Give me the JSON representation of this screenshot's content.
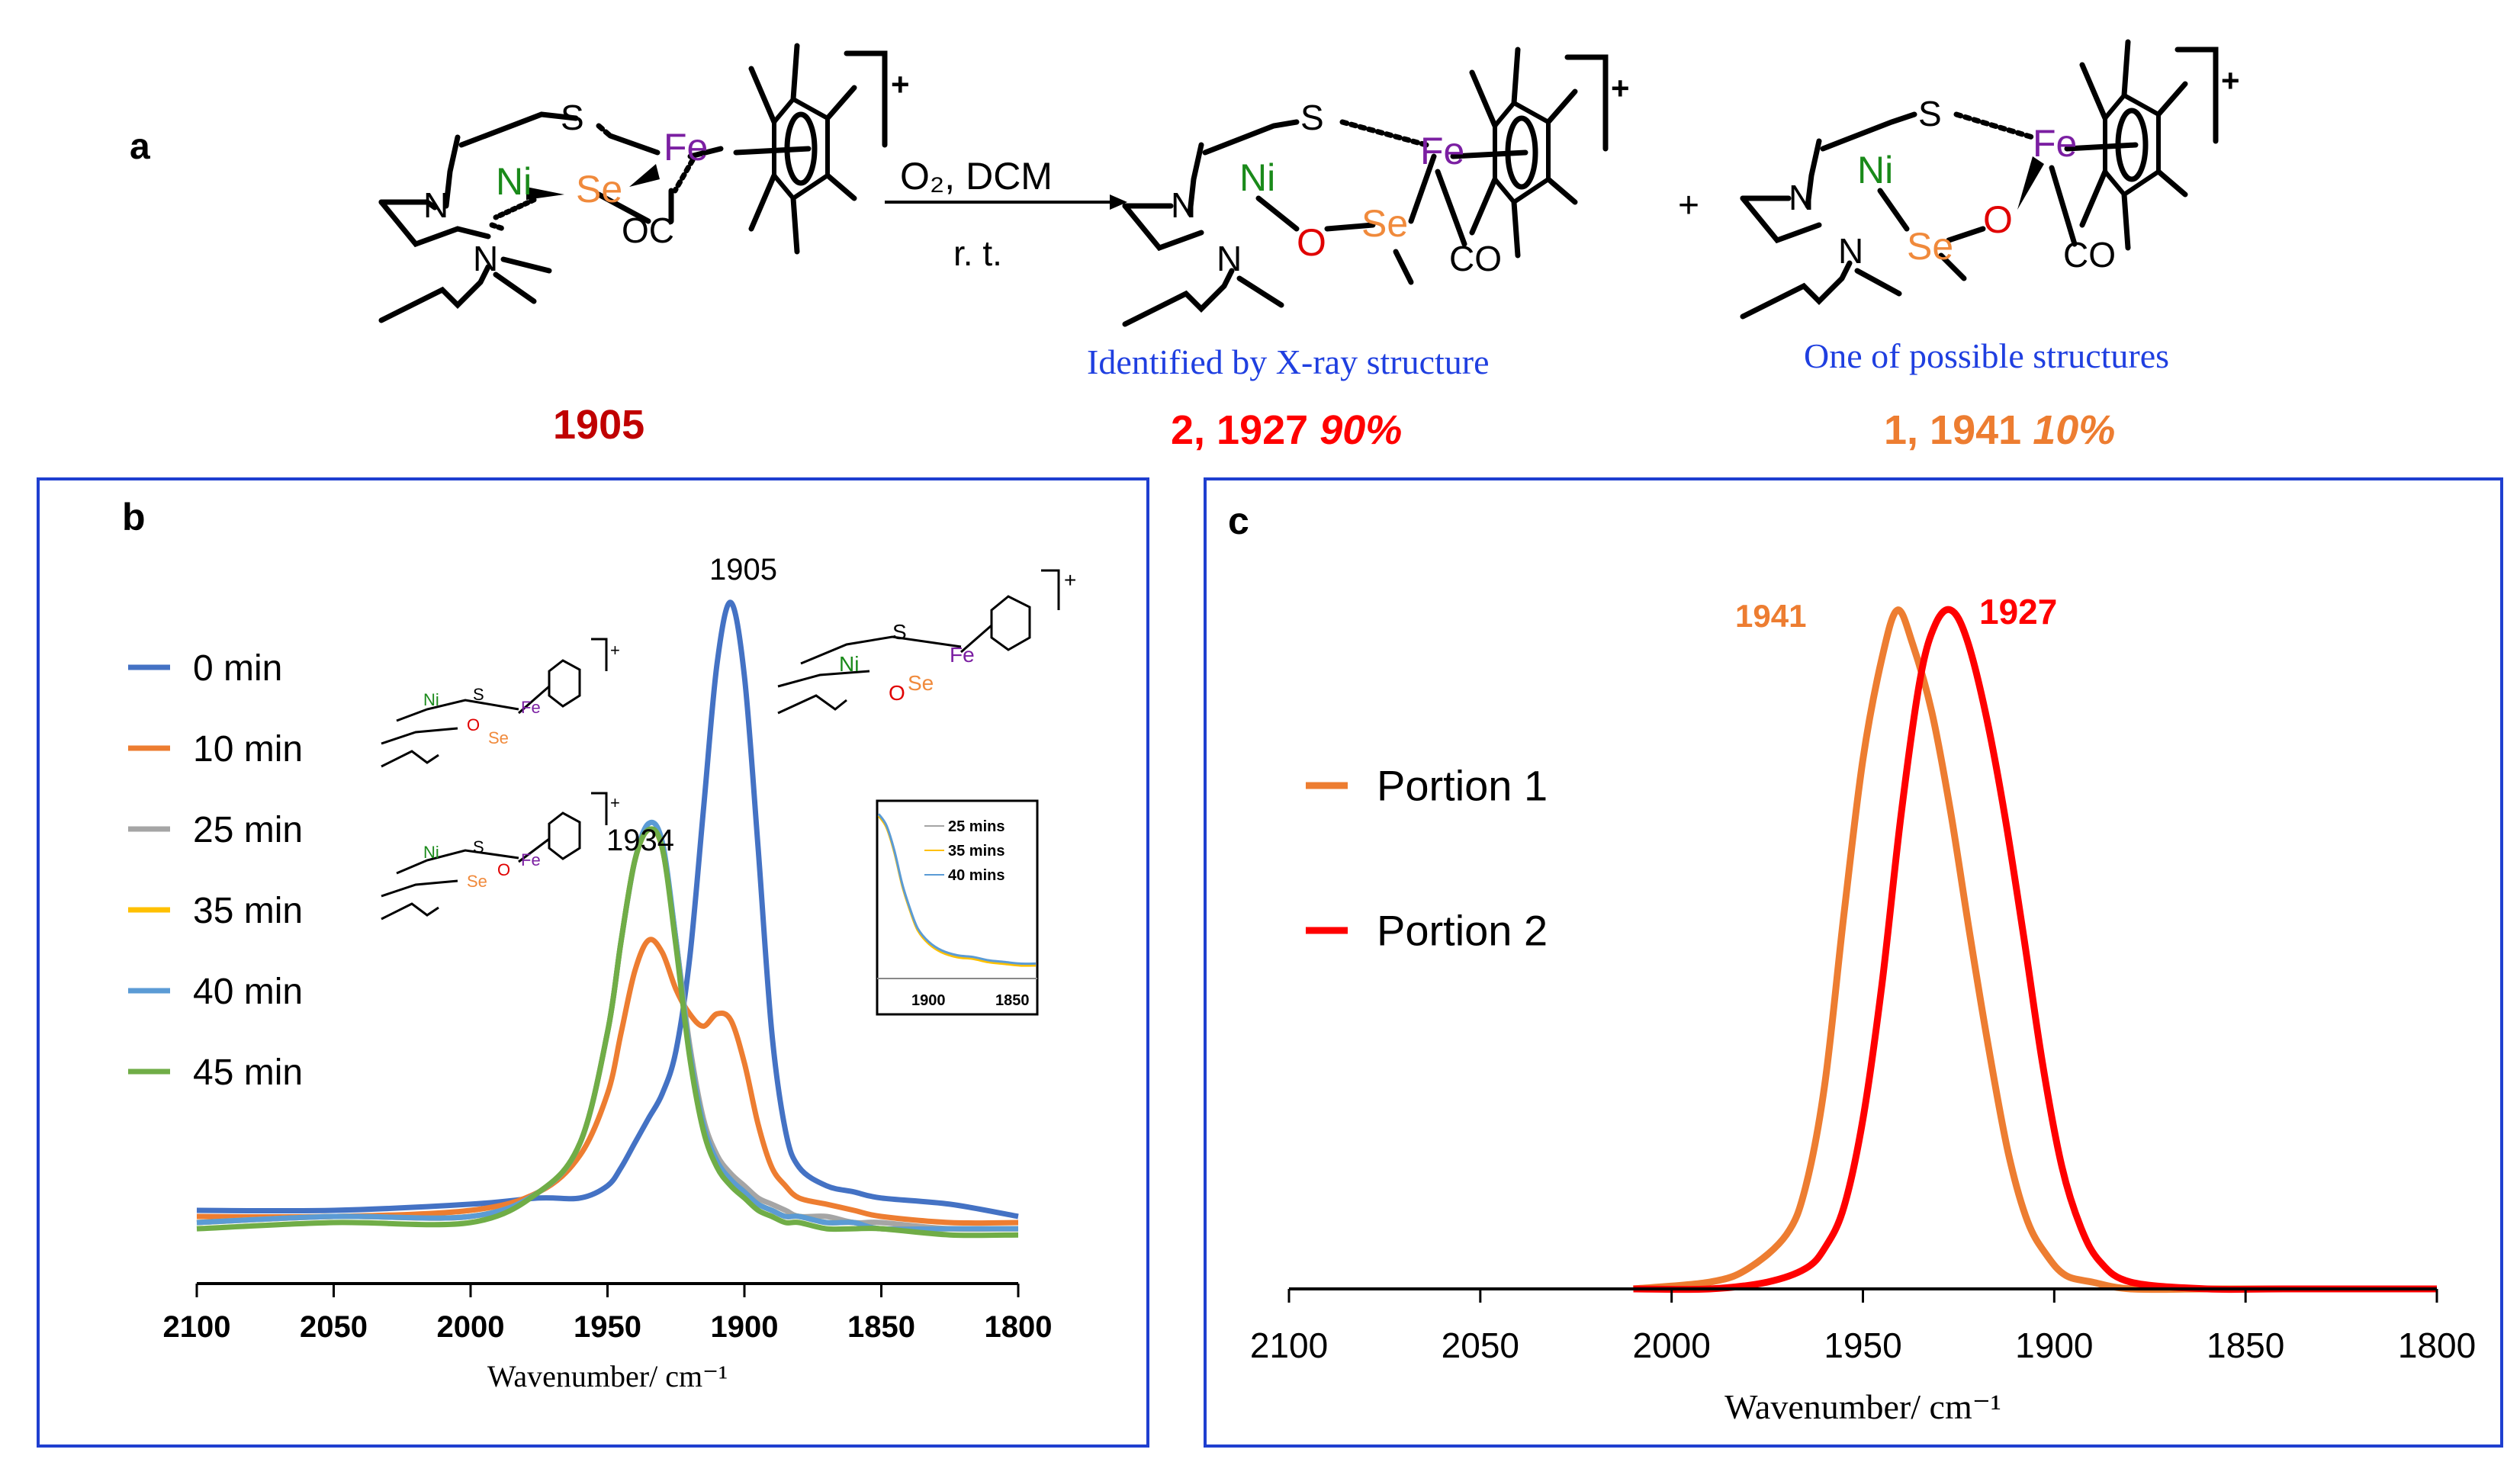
{
  "panel_a": {
    "label": "a",
    "arrow_top": "O₂, DCM",
    "arrow_bottom": "r. t.",
    "plus": "+",
    "reactant_label": "1905",
    "product1_caption": "Identified by X-ray structure",
    "product1_label": "2, 1927",
    "product1_pct": "90%",
    "product2_caption": "One of possible structures",
    "product2_label": "1, 1941",
    "product2_pct": "10%",
    "atoms": {
      "S": "S",
      "Se": "Se",
      "Ni": "Ni",
      "Fe": "Fe",
      "N": "N",
      "O": "O",
      "OC": "OC",
      "CO": "CO",
      "charge": "+"
    }
  },
  "panel_b": {
    "label": "b",
    "peak_labels": [
      "1905",
      "1934"
    ],
    "inset_legend": [
      "25 mins",
      "35 mins",
      "40 mins"
    ],
    "inset_ticks": [
      "1900",
      "1850"
    ]
  },
  "panel_c": {
    "label": "c",
    "peak_labels": [
      "1941",
      "1927"
    ]
  },
  "colors": {
    "orange": "#ED7D31",
    "red": "#FF0000",
    "darkred": "#C00000",
    "blue_text": "#1F3FE0",
    "frame": "#1F3FD0",
    "ni": "#1A8A1A",
    "fe": "#7B1FA2",
    "se": "#F08A3C",
    "o": "#E00000"
  },
  "chart_data": [
    {
      "type": "line",
      "title": "",
      "xlabel": "Wavenumber/ cm⁻¹",
      "ylabel": "",
      "xlim": [
        2100,
        1800
      ],
      "xticks": [
        "2100",
        "2050",
        "2000",
        "1950",
        "1900",
        "1850",
        "1800"
      ],
      "ylim": [
        0,
        1
      ],
      "grid": false,
      "legend_position": "left",
      "series": [
        {
          "name": "0 min",
          "color": "#4472C4",
          "x": [
            2100,
            2050,
            2000,
            1975,
            1960,
            1950,
            1945,
            1940,
            1935,
            1930,
            1925,
            1920,
            1915,
            1910,
            1905,
            1900,
            1895,
            1890,
            1885,
            1880,
            1870,
            1860,
            1850,
            1825,
            1800
          ],
          "y": [
            0.01,
            0.01,
            0.02,
            0.03,
            0.03,
            0.05,
            0.08,
            0.12,
            0.16,
            0.2,
            0.27,
            0.42,
            0.66,
            0.9,
            1.0,
            0.88,
            0.6,
            0.3,
            0.14,
            0.08,
            0.05,
            0.04,
            0.03,
            0.02,
            0.0
          ]
        },
        {
          "name": "10 min",
          "color": "#ED7D31",
          "x": [
            2100,
            2050,
            2000,
            1975,
            1960,
            1950,
            1945,
            1940,
            1935,
            1930,
            1925,
            1920,
            1915,
            1910,
            1905,
            1900,
            1895,
            1890,
            1885,
            1880,
            1870,
            1860,
            1850,
            1825,
            1800
          ],
          "y": [
            0.0,
            0.0,
            0.01,
            0.04,
            0.1,
            0.2,
            0.3,
            0.4,
            0.45,
            0.43,
            0.37,
            0.33,
            0.31,
            0.33,
            0.32,
            0.25,
            0.15,
            0.08,
            0.05,
            0.03,
            0.02,
            0.01,
            0.0,
            -0.01,
            -0.01
          ]
        },
        {
          "name": "25 min",
          "color": "#A5A5A5",
          "x": [
            2100,
            2050,
            2000,
            1975,
            1960,
            1950,
            1945,
            1940,
            1935,
            1930,
            1925,
            1920,
            1915,
            1910,
            1905,
            1900,
            1895,
            1890,
            1885,
            1880,
            1870,
            1860,
            1850,
            1825,
            1800
          ],
          "y": [
            -0.01,
            0.0,
            0.0,
            0.04,
            0.12,
            0.3,
            0.45,
            0.58,
            0.63,
            0.6,
            0.45,
            0.28,
            0.16,
            0.1,
            0.07,
            0.05,
            0.03,
            0.02,
            0.01,
            0.0,
            0.0,
            -0.01,
            -0.01,
            -0.02,
            -0.02
          ]
        },
        {
          "name": "35 min",
          "color": "#FFC000",
          "x": [
            2100,
            2050,
            2000,
            1975,
            1960,
            1950,
            1945,
            1940,
            1935,
            1930,
            1925,
            1920,
            1915,
            1910,
            1905,
            1900,
            1895,
            1890,
            1885,
            1880,
            1870,
            1860,
            1850,
            1825,
            1800
          ],
          "y": [
            -0.01,
            0.0,
            0.0,
            0.04,
            0.12,
            0.3,
            0.45,
            0.58,
            0.63,
            0.6,
            0.45,
            0.27,
            0.15,
            0.09,
            0.06,
            0.04,
            0.02,
            0.01,
            0.0,
            0.0,
            -0.01,
            -0.01,
            -0.02,
            -0.02,
            -0.02
          ]
        },
        {
          "name": "40 min",
          "color": "#5B9BD5",
          "x": [
            2100,
            2050,
            2000,
            1975,
            1960,
            1950,
            1945,
            1940,
            1935,
            1930,
            1925,
            1920,
            1915,
            1910,
            1905,
            1900,
            1895,
            1890,
            1885,
            1880,
            1870,
            1860,
            1850,
            1825,
            1800
          ],
          "y": [
            -0.01,
            0.0,
            0.0,
            0.04,
            0.12,
            0.3,
            0.45,
            0.58,
            0.64,
            0.61,
            0.45,
            0.27,
            0.15,
            0.09,
            0.06,
            0.04,
            0.02,
            0.01,
            0.0,
            0.0,
            -0.01,
            -0.01,
            -0.02,
            -0.02,
            -0.02
          ]
        },
        {
          "name": "45 min",
          "color": "#70AD47",
          "x": [
            2100,
            2050,
            2000,
            1975,
            1960,
            1950,
            1945,
            1940,
            1935,
            1930,
            1925,
            1920,
            1915,
            1910,
            1905,
            1900,
            1895,
            1890,
            1885,
            1880,
            1870,
            1860,
            1850,
            1825,
            1800
          ],
          "y": [
            -0.02,
            -0.01,
            -0.01,
            0.04,
            0.12,
            0.3,
            0.45,
            0.58,
            0.63,
            0.6,
            0.44,
            0.26,
            0.14,
            0.08,
            0.05,
            0.03,
            0.01,
            0.0,
            -0.01,
            -0.01,
            -0.02,
            -0.02,
            -0.02,
            -0.03,
            -0.03
          ]
        }
      ]
    },
    {
      "type": "line",
      "title": "",
      "xlabel": "Wavenumber/ cm⁻¹",
      "ylabel": "",
      "xlim": [
        2100,
        1800
      ],
      "xticks": [
        "2100",
        "2050",
        "2000",
        "1950",
        "1900",
        "1850",
        "1800"
      ],
      "ylim": [
        0,
        1
      ],
      "grid": false,
      "legend_position": "left",
      "series": [
        {
          "name": "Portion 1",
          "color": "#ED7D31",
          "x": [
            2010,
            1990,
            1980,
            1970,
            1965,
            1960,
            1955,
            1950,
            1945,
            1941,
            1937,
            1932,
            1927,
            1922,
            1917,
            1912,
            1907,
            1902,
            1897,
            1890,
            1880,
            1860,
            1840,
            1800
          ],
          "y": [
            0.0,
            0.01,
            0.03,
            0.08,
            0.15,
            0.3,
            0.55,
            0.78,
            0.93,
            1.0,
            0.95,
            0.85,
            0.7,
            0.52,
            0.35,
            0.2,
            0.1,
            0.05,
            0.02,
            0.01,
            0.0,
            0.0,
            0.0,
            0.0
          ]
        },
        {
          "name": "Portion 2",
          "color": "#FF0000",
          "x": [
            2010,
            1990,
            1975,
            1965,
            1960,
            1955,
            1950,
            1945,
            1940,
            1935,
            1931,
            1927,
            1923,
            1918,
            1913,
            1908,
            1903,
            1898,
            1893,
            1888,
            1880,
            1860,
            1840,
            1800
          ],
          "y": [
            0.0,
            0.0,
            0.01,
            0.03,
            0.06,
            0.12,
            0.25,
            0.45,
            0.7,
            0.9,
            0.98,
            1.0,
            0.96,
            0.85,
            0.7,
            0.52,
            0.33,
            0.18,
            0.09,
            0.04,
            0.01,
            0.0,
            0.0,
            0.0
          ]
        }
      ]
    }
  ]
}
